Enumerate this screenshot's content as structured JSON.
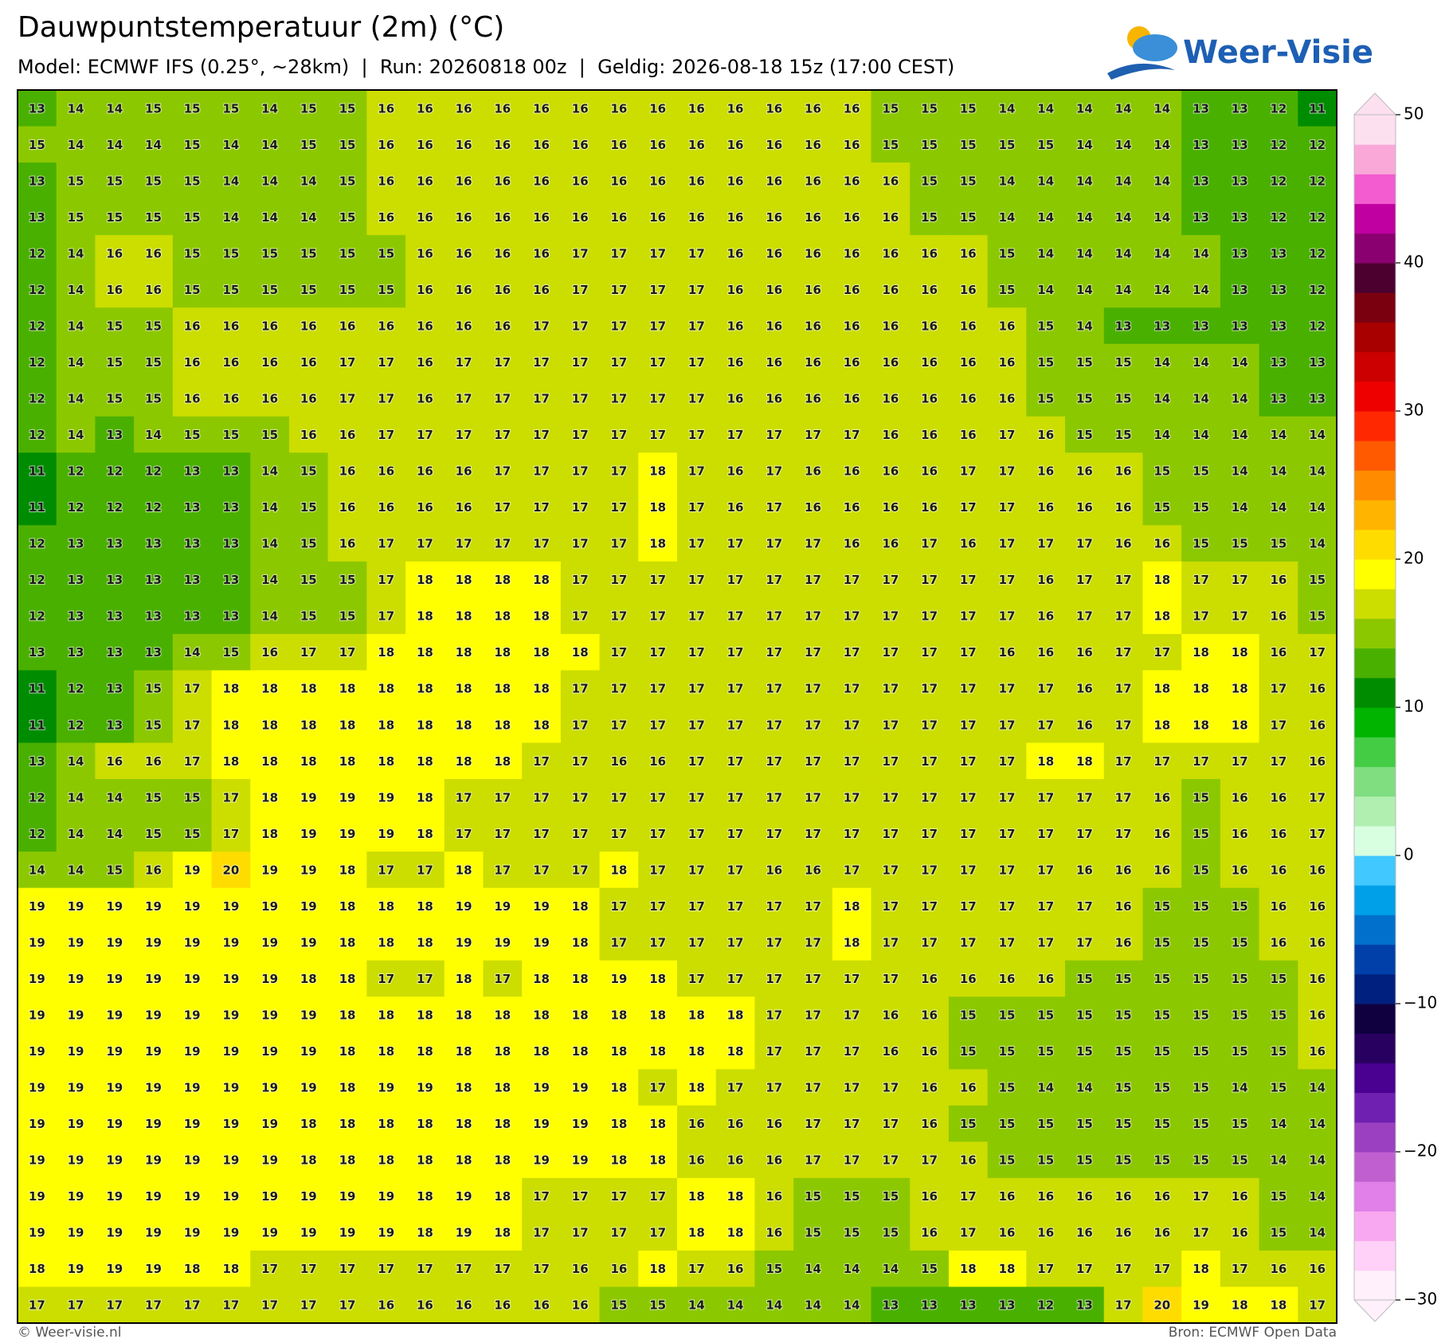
{
  "chart_data": {
    "type": "heatmap",
    "title": "Dauwpuntstemperatuur (2m) (°C)",
    "subtitle": "Model: ECMWF IFS (0.25°, ~28km)  |  Run: 20260818 00z  |  Geldig: 2026-08-18 15z (17:00 CEST)",
    "logo": "Weer-Visie",
    "footer_left": "© Weer-visie.nl",
    "footer_right": "Bron: ECMWF Open Data",
    "values": [
      [
        13,
        14,
        14,
        15,
        15,
        15,
        14,
        15,
        15,
        16,
        16,
        16,
        16,
        16,
        16,
        16,
        16,
        16,
        16,
        16,
        16,
        16,
        15,
        15,
        15,
        14,
        14,
        14,
        14,
        14,
        13,
        13,
        12,
        11
      ],
      [
        15,
        14,
        14,
        14,
        15,
        14,
        14,
        15,
        15,
        16,
        16,
        16,
        16,
        16,
        16,
        16,
        16,
        16,
        16,
        16,
        16,
        16,
        15,
        15,
        15,
        15,
        15,
        14,
        14,
        14,
        13,
        13,
        12,
        12
      ],
      [
        13,
        15,
        15,
        15,
        15,
        14,
        14,
        14,
        15,
        16,
        16,
        16,
        16,
        16,
        16,
        16,
        16,
        16,
        16,
        16,
        16,
        16,
        16,
        15,
        15,
        14,
        14,
        14,
        14,
        14,
        13,
        13,
        12,
        12
      ],
      [
        13,
        15,
        15,
        15,
        15,
        14,
        14,
        14,
        15,
        16,
        16,
        16,
        16,
        16,
        16,
        16,
        16,
        16,
        16,
        16,
        16,
        16,
        16,
        15,
        15,
        14,
        14,
        14,
        14,
        14,
        13,
        13,
        12,
        12
      ],
      [
        12,
        14,
        16,
        16,
        15,
        15,
        15,
        15,
        15,
        15,
        16,
        16,
        16,
        16,
        17,
        17,
        17,
        17,
        16,
        16,
        16,
        16,
        16,
        16,
        16,
        15,
        14,
        14,
        14,
        14,
        14,
        13,
        13,
        12
      ],
      [
        12,
        14,
        16,
        16,
        15,
        15,
        15,
        15,
        15,
        15,
        16,
        16,
        16,
        16,
        17,
        17,
        17,
        17,
        16,
        16,
        16,
        16,
        16,
        16,
        16,
        15,
        14,
        14,
        14,
        14,
        14,
        13,
        13,
        12
      ],
      [
        12,
        14,
        15,
        15,
        16,
        16,
        16,
        16,
        16,
        16,
        16,
        16,
        16,
        17,
        17,
        17,
        17,
        17,
        16,
        16,
        16,
        16,
        16,
        16,
        16,
        16,
        15,
        14,
        13,
        13,
        13,
        13,
        13,
        12
      ],
      [
        12,
        14,
        15,
        15,
        16,
        16,
        16,
        16,
        17,
        17,
        16,
        17,
        17,
        17,
        17,
        17,
        17,
        17,
        16,
        16,
        16,
        16,
        16,
        16,
        16,
        16,
        15,
        15,
        15,
        14,
        14,
        14,
        13,
        13
      ],
      [
        12,
        14,
        15,
        15,
        16,
        16,
        16,
        16,
        17,
        17,
        16,
        17,
        17,
        17,
        17,
        17,
        17,
        17,
        16,
        16,
        16,
        16,
        16,
        16,
        16,
        16,
        15,
        15,
        15,
        14,
        14,
        14,
        13,
        13
      ],
      [
        12,
        14,
        13,
        14,
        15,
        15,
        15,
        16,
        16,
        17,
        17,
        17,
        17,
        17,
        17,
        17,
        17,
        17,
        17,
        17,
        17,
        17,
        16,
        16,
        16,
        17,
        16,
        15,
        15,
        14,
        14,
        14,
        14,
        14
      ],
      [
        11,
        12,
        12,
        12,
        13,
        13,
        14,
        15,
        16,
        16,
        16,
        16,
        17,
        17,
        17,
        17,
        18,
        17,
        16,
        17,
        16,
        16,
        16,
        16,
        17,
        17,
        16,
        16,
        16,
        15,
        15,
        14,
        14,
        14
      ],
      [
        11,
        12,
        12,
        12,
        13,
        13,
        14,
        15,
        16,
        16,
        16,
        16,
        17,
        17,
        17,
        17,
        18,
        17,
        16,
        17,
        16,
        16,
        16,
        16,
        17,
        17,
        16,
        16,
        16,
        15,
        15,
        14,
        14,
        14
      ],
      [
        12,
        13,
        13,
        13,
        13,
        13,
        14,
        15,
        16,
        17,
        17,
        17,
        17,
        17,
        17,
        17,
        18,
        17,
        17,
        17,
        17,
        16,
        16,
        17,
        16,
        17,
        17,
        17,
        16,
        16,
        15,
        15,
        15,
        14
      ],
      [
        12,
        13,
        13,
        13,
        13,
        13,
        14,
        15,
        15,
        17,
        18,
        18,
        18,
        18,
        17,
        17,
        17,
        17,
        17,
        17,
        17,
        17,
        17,
        17,
        17,
        17,
        16,
        17,
        17,
        18,
        17,
        17,
        16,
        15
      ],
      [
        12,
        13,
        13,
        13,
        13,
        13,
        14,
        15,
        15,
        17,
        18,
        18,
        18,
        18,
        17,
        17,
        17,
        17,
        17,
        17,
        17,
        17,
        17,
        17,
        17,
        17,
        16,
        17,
        17,
        18,
        17,
        17,
        16,
        15
      ],
      [
        13,
        13,
        13,
        13,
        14,
        15,
        16,
        17,
        17,
        18,
        18,
        18,
        18,
        18,
        18,
        17,
        17,
        17,
        17,
        17,
        17,
        17,
        17,
        17,
        17,
        16,
        16,
        16,
        17,
        17,
        18,
        18,
        16,
        17
      ],
      [
        11,
        12,
        13,
        15,
        17,
        18,
        18,
        18,
        18,
        18,
        18,
        18,
        18,
        18,
        17,
        17,
        17,
        17,
        17,
        17,
        17,
        17,
        17,
        17,
        17,
        17,
        17,
        16,
        17,
        18,
        18,
        18,
        17,
        16
      ],
      [
        11,
        12,
        13,
        15,
        17,
        18,
        18,
        18,
        18,
        18,
        18,
        18,
        18,
        18,
        17,
        17,
        17,
        17,
        17,
        17,
        17,
        17,
        17,
        17,
        17,
        17,
        17,
        16,
        17,
        18,
        18,
        18,
        17,
        16
      ],
      [
        13,
        14,
        16,
        16,
        17,
        18,
        18,
        18,
        18,
        18,
        18,
        18,
        18,
        17,
        17,
        16,
        16,
        17,
        17,
        17,
        17,
        17,
        17,
        17,
        17,
        17,
        18,
        18,
        17,
        17,
        17,
        17,
        17,
        16
      ],
      [
        12,
        14,
        14,
        15,
        15,
        17,
        18,
        19,
        19,
        19,
        18,
        17,
        17,
        17,
        17,
        17,
        17,
        17,
        17,
        17,
        17,
        17,
        17,
        17,
        17,
        17,
        17,
        17,
        17,
        16,
        15,
        16,
        16,
        17
      ],
      [
        12,
        14,
        14,
        15,
        15,
        17,
        18,
        19,
        19,
        19,
        18,
        17,
        17,
        17,
        17,
        17,
        17,
        17,
        17,
        17,
        17,
        17,
        17,
        17,
        17,
        17,
        17,
        17,
        17,
        16,
        15,
        16,
        16,
        17
      ],
      [
        14,
        14,
        15,
        16,
        19,
        20,
        19,
        19,
        18,
        17,
        17,
        18,
        17,
        17,
        17,
        18,
        17,
        17,
        17,
        16,
        16,
        17,
        17,
        17,
        17,
        17,
        17,
        16,
        16,
        16,
        15,
        16,
        16,
        16
      ],
      [
        19,
        19,
        19,
        19,
        19,
        19,
        19,
        19,
        18,
        18,
        18,
        19,
        19,
        19,
        18,
        17,
        17,
        17,
        17,
        17,
        17,
        18,
        17,
        17,
        17,
        17,
        17,
        17,
        16,
        15,
        15,
        15,
        16,
        16
      ],
      [
        19,
        19,
        19,
        19,
        19,
        19,
        19,
        19,
        18,
        18,
        18,
        19,
        19,
        19,
        18,
        17,
        17,
        17,
        17,
        17,
        17,
        18,
        17,
        17,
        17,
        17,
        17,
        17,
        16,
        15,
        15,
        15,
        16,
        16
      ],
      [
        19,
        19,
        19,
        19,
        19,
        19,
        19,
        18,
        18,
        17,
        17,
        18,
        17,
        18,
        18,
        19,
        18,
        17,
        17,
        17,
        17,
        17,
        17,
        16,
        16,
        16,
        16,
        15,
        15,
        15,
        15,
        15,
        15,
        16
      ],
      [
        19,
        19,
        19,
        19,
        19,
        19,
        19,
        19,
        18,
        18,
        18,
        18,
        18,
        18,
        18,
        18,
        18,
        18,
        18,
        17,
        17,
        17,
        16,
        16,
        15,
        15,
        15,
        15,
        15,
        15,
        15,
        15,
        15,
        16
      ],
      [
        19,
        19,
        19,
        19,
        19,
        19,
        19,
        19,
        18,
        18,
        18,
        18,
        18,
        18,
        18,
        18,
        18,
        18,
        18,
        17,
        17,
        17,
        16,
        16,
        15,
        15,
        15,
        15,
        15,
        15,
        15,
        15,
        15,
        16
      ],
      [
        19,
        19,
        19,
        19,
        19,
        19,
        19,
        19,
        18,
        19,
        19,
        18,
        18,
        19,
        19,
        18,
        17,
        18,
        17,
        17,
        17,
        17,
        17,
        16,
        16,
        15,
        14,
        14,
        15,
        15,
        15,
        14,
        15,
        14
      ],
      [
        19,
        19,
        19,
        19,
        19,
        19,
        19,
        18,
        18,
        18,
        18,
        18,
        18,
        19,
        19,
        18,
        18,
        16,
        16,
        16,
        17,
        17,
        17,
        16,
        15,
        15,
        15,
        15,
        15,
        15,
        15,
        15,
        14,
        14
      ],
      [
        19,
        19,
        19,
        19,
        19,
        19,
        19,
        18,
        18,
        18,
        18,
        18,
        18,
        19,
        19,
        18,
        18,
        16,
        16,
        16,
        17,
        17,
        17,
        17,
        16,
        15,
        15,
        15,
        15,
        15,
        15,
        15,
        14,
        14
      ],
      [
        19,
        19,
        19,
        19,
        19,
        19,
        19,
        19,
        19,
        19,
        18,
        19,
        18,
        17,
        17,
        17,
        17,
        18,
        18,
        16,
        15,
        15,
        15,
        16,
        17,
        16,
        16,
        16,
        16,
        16,
        17,
        16,
        15,
        14
      ],
      [
        19,
        19,
        19,
        19,
        19,
        19,
        19,
        19,
        19,
        19,
        18,
        19,
        18,
        17,
        17,
        17,
        17,
        18,
        18,
        16,
        15,
        15,
        15,
        16,
        17,
        16,
        16,
        16,
        16,
        16,
        17,
        16,
        15,
        14
      ],
      [
        18,
        19,
        19,
        19,
        18,
        18,
        17,
        17,
        17,
        17,
        17,
        17,
        17,
        17,
        16,
        16,
        18,
        17,
        16,
        15,
        14,
        14,
        14,
        15,
        18,
        18,
        17,
        17,
        17,
        17,
        18,
        17,
        16,
        16
      ],
      [
        17,
        17,
        17,
        17,
        17,
        17,
        17,
        17,
        17,
        16,
        16,
        16,
        16,
        16,
        16,
        15,
        15,
        14,
        14,
        14,
        14,
        14,
        13,
        13,
        13,
        13,
        12,
        13,
        17,
        20,
        19,
        18,
        18,
        17
      ]
    ],
    "clim": [
      -30,
      50
    ],
    "cticks": [
      50,
      40,
      30,
      20,
      10,
      0,
      {
        "value": -10,
        "label": "−10"
      },
      {
        "value": -20,
        "label": "−20"
      },
      {
        "value": -30,
        "label": "−30"
      }
    ],
    "colors": [
      "#fff0fc",
      "#ffd0f8",
      "#f8a8f0",
      "#e080e8",
      "#c060d0",
      "#9a40c0",
      "#7020b0",
      "#4a0090",
      "#280060",
      "#100040",
      "#002080",
      "#0040a8",
      "#0070cc",
      "#00a0e8",
      "#40c8ff",
      "#d8ffe0",
      "#b0efb0",
      "#80dd80",
      "#44cc44",
      "#00b400",
      "#008c00",
      "#4ab000",
      "#8cc800",
      "#ccdd00",
      "#ffff00",
      "#ffdc00",
      "#ffb400",
      "#ff8c00",
      "#ff5a00",
      "#ff2800",
      "#ee0000",
      "#cc0000",
      "#a80000",
      "#7a0010",
      "#4b0030",
      "#8b0070",
      "#c000a0",
      "#f25cd0",
      "#f9a8d8",
      "#fde0ef"
    ]
  }
}
